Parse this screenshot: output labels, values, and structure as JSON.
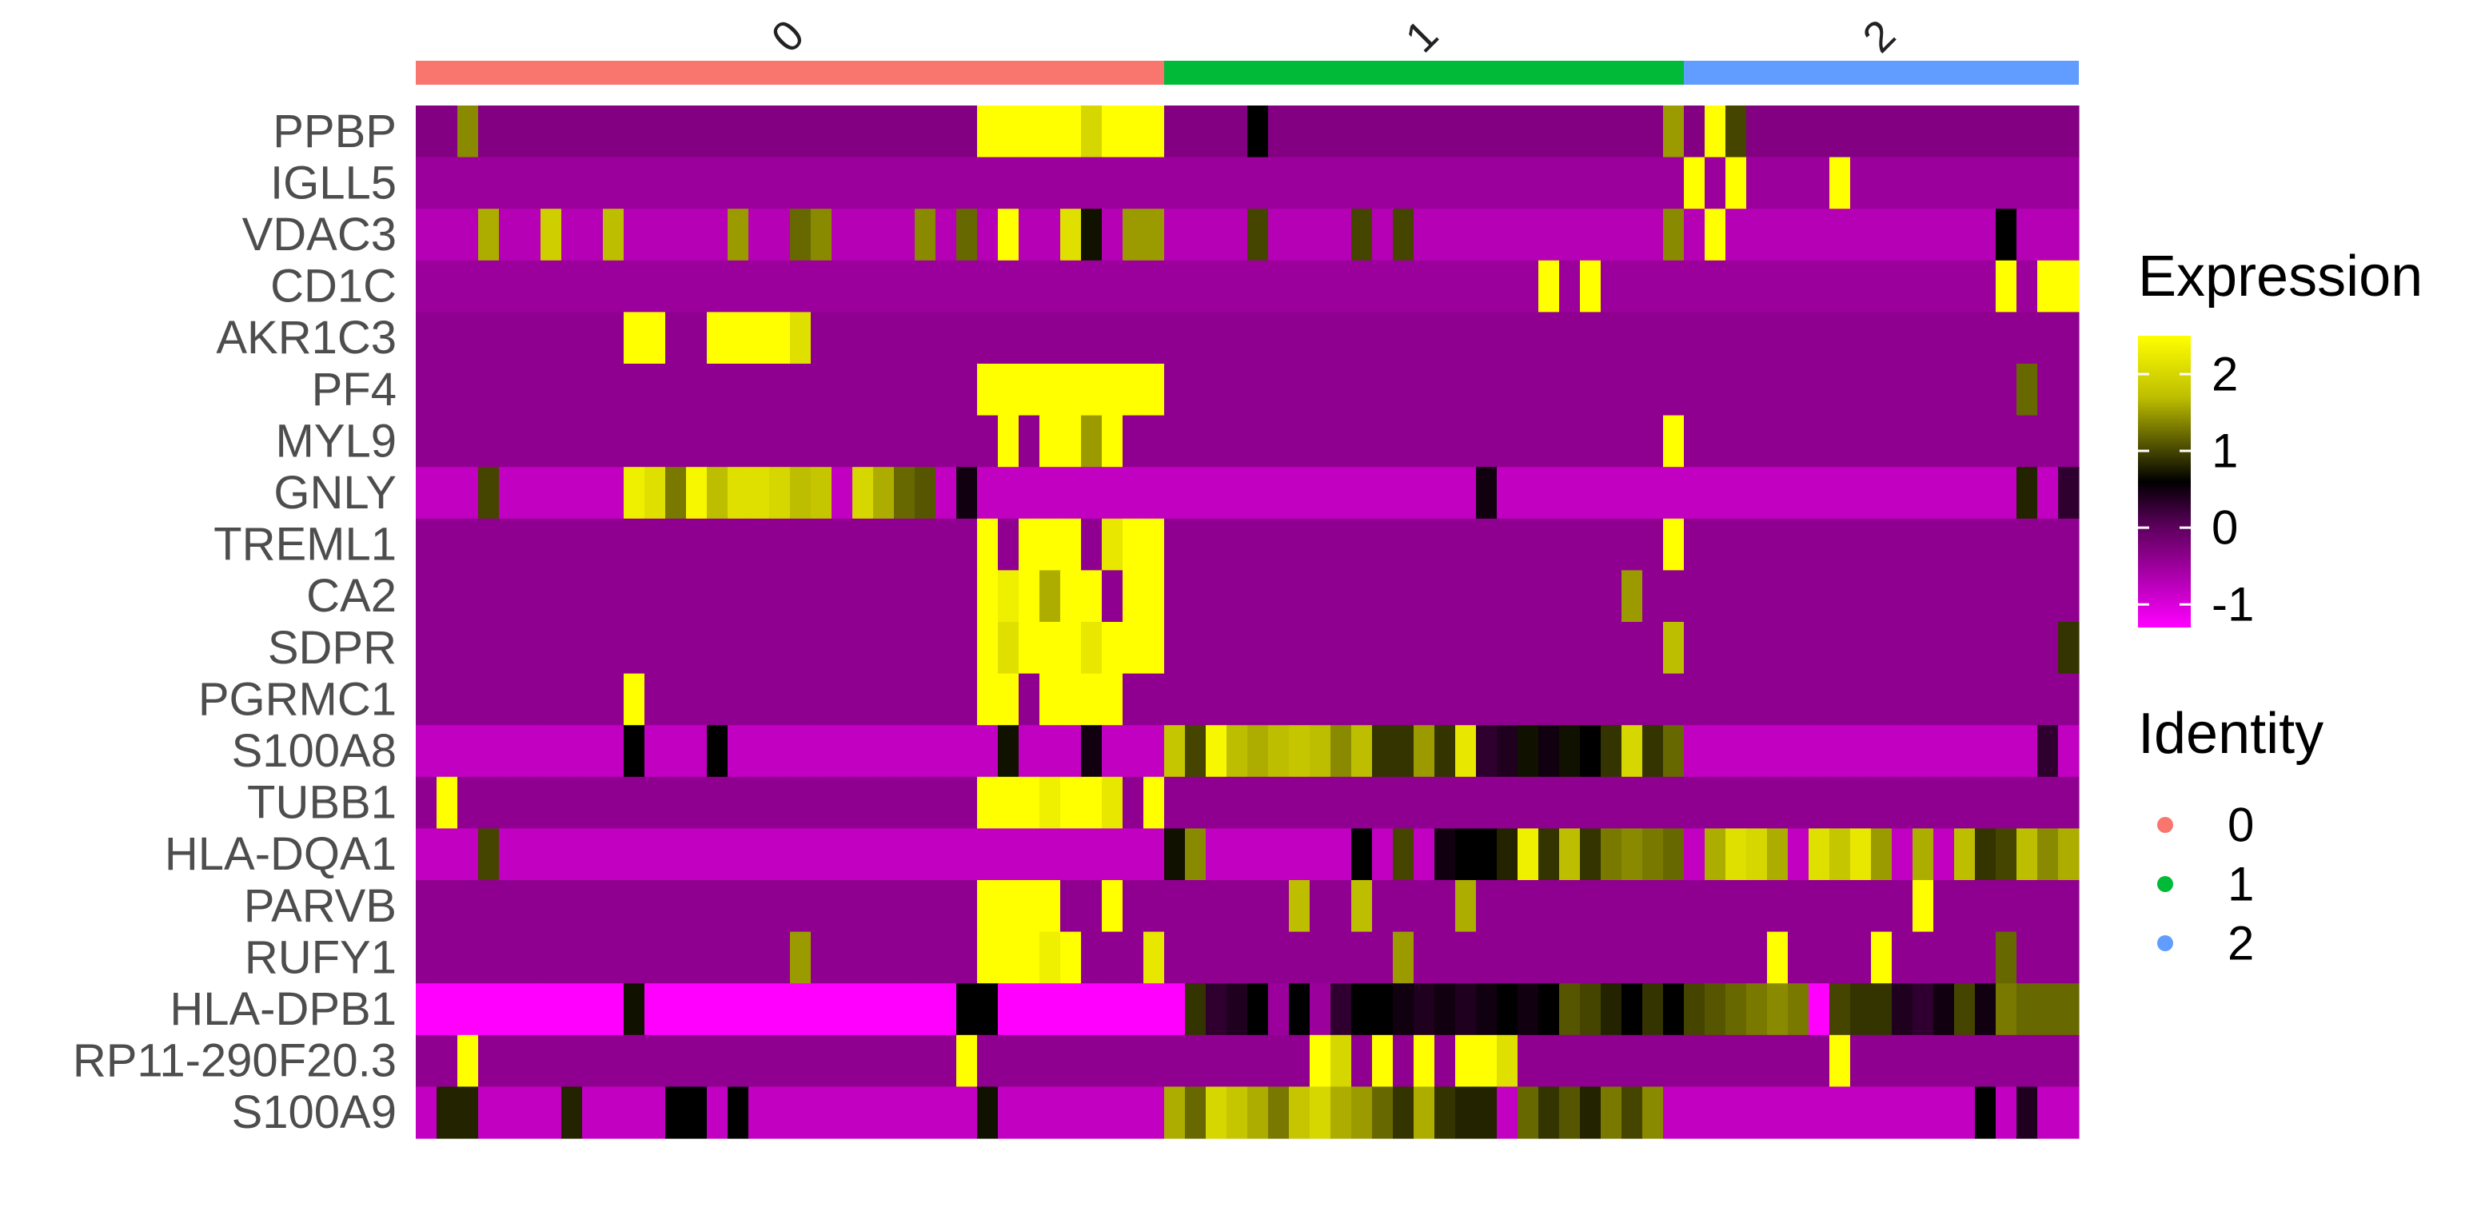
{
  "chart_data": {
    "type": "heatmap",
    "title": "",
    "xlabel": "",
    "ylabel": "",
    "genes": [
      "PPBP",
      "IGLL5",
      "VDAC3",
      "CD1C",
      "AKR1C3",
      "PF4",
      "MYL9",
      "GNLY",
      "TREML1",
      "CA2",
      "SDPR",
      "PGRMC1",
      "S100A8",
      "TUBB1",
      "HLA-DQA1",
      "PARVB",
      "RUFY1",
      "HLA-DPB1",
      "RP11-290F20.3",
      "S100A9"
    ],
    "clusters": [
      {
        "name": "0",
        "cells": 36,
        "color": "#F8766D"
      },
      {
        "name": "1",
        "cells": 25,
        "color": "#00BA38"
      },
      {
        "name": "2",
        "cells": 19,
        "color": "#619CFF"
      }
    ],
    "cell_count": 80,
    "color_scale": {
      "title": "Expression",
      "range": [
        -1.3,
        2.5
      ],
      "stops": [
        {
          "value": -1.3,
          "color": "#FF00FF"
        },
        {
          "value": 0,
          "color": "#5E005E"
        },
        {
          "value": 0.6,
          "color": "#000000"
        },
        {
          "value": 1.7,
          "color": "#BEBE00"
        },
        {
          "value": 2.5,
          "color": "#FFFF00"
        }
      ],
      "ticks": [
        -1,
        0,
        1,
        2
      ]
    },
    "identity_legend": {
      "title": "Identity",
      "entries": [
        {
          "label": "0",
          "color": "#F8766D"
        },
        {
          "label": "1",
          "color": "#00BA38"
        },
        {
          "label": "2",
          "color": "#619CFF"
        }
      ]
    },
    "rows": {
      "PPBP": {
        "base": -0.3,
        "v": {
          "2": 1.4,
          "27": 2.5,
          "28": 2.5,
          "29": 2.5,
          "30": 2.5,
          "31": 2.5,
          "32": 2.0,
          "33": 2.5,
          "34": 2.5,
          "35": 2.5,
          "40": 0.6,
          "60": 1.5,
          "62": 2.5,
          "63": 1.0
        }
      },
      "IGLL5": {
        "base": -0.5,
        "v": {
          "61": 2.5,
          "63": 2.5,
          "68": 2.5
        }
      },
      "VDAC3": {
        "base": -0.7,
        "v": {
          "3": 1.6,
          "6": 1.9,
          "9": 1.7,
          "15": 1.5,
          "18": 1.2,
          "19": 1.4,
          "24": 1.4,
          "26": 1.2,
          "28": 2.5,
          "31": 2.1,
          "32": 0.7,
          "34": 1.5,
          "35": 1.5,
          "40": 1.0,
          "45": 1.0,
          "47": 1.0,
          "60": 1.4,
          "62": 2.5,
          "76": 0.6
        }
      },
      "CD1C": {
        "base": -0.5,
        "v": {
          "54": 2.5,
          "56": 2.5,
          "76": 2.5,
          "78": 2.5,
          "79": 2.5
        }
      },
      "AKR1C3": {
        "base": -0.4,
        "v": {
          "10": 2.5,
          "11": 2.5,
          "14": 2.5,
          "15": 2.5,
          "16": 2.5,
          "17": 2.5,
          "18": 2.1
        }
      },
      "PF4": {
        "base": -0.4,
        "v": {
          "27": 2.5,
          "28": 2.5,
          "29": 2.5,
          "30": 2.5,
          "31": 2.5,
          "32": 2.5,
          "33": 2.5,
          "34": 2.5,
          "35": 2.5,
          "77": 1.2
        }
      },
      "MYL9": {
        "base": -0.4,
        "v": {
          "28": 2.5,
          "30": 2.5,
          "31": 2.5,
          "32": 1.5,
          "33": 2.5,
          "60": 2.5
        }
      },
      "GNLY": {
        "base": -0.8,
        "v": {
          "3": 1.0,
          "10": 2.3,
          "11": 2.1,
          "12": 1.3,
          "13": 2.4,
          "14": 1.7,
          "15": 2.1,
          "16": 2.1,
          "17": 2.0,
          "18": 1.7,
          "19": 1.8,
          "21": 2.0,
          "22": 1.6,
          "23": 1.2,
          "24": 1.1,
          "26": 0.5,
          "51": 0.5,
          "77": 0.8,
          "79": 0.3
        }
      },
      "TREML1": {
        "base": -0.4,
        "v": {
          "27": 2.5,
          "29": 2.5,
          "30": 2.5,
          "31": 2.5,
          "33": 2.2,
          "34": 2.5,
          "35": 2.5,
          "60": 2.5
        }
      },
      "CA2": {
        "base": -0.4,
        "v": {
          "27": 2.5,
          "28": 2.3,
          "29": 2.5,
          "30": 1.6,
          "31": 2.5,
          "32": 2.5,
          "34": 2.5,
          "35": 2.5,
          "58": 1.5
        }
      },
      "SDPR": {
        "base": -0.4,
        "v": {
          "27": 2.5,
          "28": 2.1,
          "29": 2.5,
          "30": 2.5,
          "31": 2.5,
          "32": 2.2,
          "33": 2.5,
          "34": 2.5,
          "35": 2.5,
          "60": 1.7,
          "79": 0.9
        }
      },
      "PGRMC1": {
        "base": -0.4,
        "v": {
          "10": 2.5,
          "27": 2.5,
          "28": 2.5,
          "30": 2.5,
          "31": 2.5,
          "32": 2.5,
          "33": 2.5
        }
      },
      "S100A8": {
        "base": -0.8,
        "v": {
          "10": 0.6,
          "14": 0.6,
          "28": 0.7,
          "32": 0.5,
          "36": 1.8,
          "37": 1.0,
          "38": 2.4,
          "39": 1.7,
          "40": 1.6,
          "41": 1.7,
          "42": 1.8,
          "43": 1.7,
          "44": 1.4,
          "45": 1.7,
          "46": 0.9,
          "47": 0.9,
          "48": 1.5,
          "49": 0.9,
          "50": 2.2,
          "51": 0.3,
          "52": 0.4,
          "53": 0.7,
          "54": 0.5,
          "55": 0.7,
          "56": 0.6,
          "57": 0.9,
          "58": 2.0,
          "59": 0.9,
          "60": 1.2,
          "78": 0.3
        }
      },
      "TUBB1": {
        "base": -0.4,
        "v": {
          "1": 2.5,
          "27": 2.5,
          "28": 2.5,
          "29": 2.5,
          "30": 2.3,
          "31": 2.5,
          "32": 2.5,
          "33": 2.2,
          "35": 2.5
        }
      },
      "HLA-DQA1": {
        "base": -0.8,
        "v": {
          "3": 1.0,
          "36": 0.7,
          "37": 1.4,
          "45": 0.6,
          "47": 1.0,
          "49": 0.5,
          "50": 0.6,
          "51": 0.6,
          "52": 0.8,
          "53": 2.3,
          "54": 0.9,
          "55": 1.7,
          "56": 0.9,
          "57": 1.3,
          "58": 1.4,
          "59": 1.3,
          "60": 1.2,
          "62": 1.6,
          "63": 2.1,
          "64": 2.0,
          "65": 1.6,
          "67": 2.1,
          "68": 1.8,
          "69": 2.2,
          "70": 1.5,
          "72": 1.6,
          "74": 1.7,
          "75": 0.9,
          "76": 1.0,
          "77": 1.7,
          "78": 1.4,
          "79": 1.6
        }
      },
      "PARVB": {
        "base": -0.4,
        "v": {
          "27": 2.5,
          "28": 2.5,
          "29": 2.5,
          "30": 2.5,
          "33": 2.5,
          "42": 1.7,
          "45": 1.7,
          "50": 1.6,
          "72": 2.5
        }
      },
      "RUFY1": {
        "base": -0.4,
        "v": {
          "18": 1.5,
          "27": 2.5,
          "28": 2.5,
          "29": 2.5,
          "30": 2.3,
          "31": 2.5,
          "35": 2.2,
          "47": 1.5,
          "65": 2.5,
          "70": 2.5,
          "76": 1.2
        }
      },
      "HLA-DPB1": {
        "base": -1.3,
        "v": {
          "10": 0.7,
          "26": 0.6,
          "27": 0.6,
          "37": 0.9,
          "38": 0.3,
          "39": 0.4,
          "40": 0.6,
          "41": -0.5,
          "42": 0.6,
          "43": -0.5,
          "44": 0.3,
          "45": 0.6,
          "46": 0.6,
          "47": 0.5,
          "48": 0.4,
          "49": 0.5,
          "50": 0.4,
          "51": 0.5,
          "52": 0.6,
          "53": 0.5,
          "54": 0.6,
          "55": 1.1,
          "56": 1.0,
          "57": 0.8,
          "58": 0.6,
          "59": 0.9,
          "60": 0.6,
          "61": 1.0,
          "62": 1.1,
          "63": 1.2,
          "64": 1.3,
          "65": 1.4,
          "66": 1.3,
          "67": -1.3,
          "68": 1.0,
          "69": 0.9,
          "70": 0.9,
          "71": 0.4,
          "72": 0.3,
          "73": 0.5,
          "74": 1.0,
          "75": 0.5,
          "76": 1.3,
          "77": 1.2,
          "78": 1.2,
          "79": 1.2
        }
      },
      "RP11-290F20.3": {
        "base": -0.4,
        "v": {
          "2": 2.5,
          "26": 2.5,
          "43": 2.5,
          "44": 2.0,
          "46": 2.5,
          "48": 2.5,
          "50": 2.5,
          "51": 2.5,
          "52": 2.1,
          "68": 2.5
        }
      },
      "S100A9": {
        "base": -0.8,
        "v": {
          "1": 0.8,
          "2": 0.8,
          "7": 0.8,
          "12": 0.6,
          "13": 0.6,
          "15": 0.6,
          "27": 0.7,
          "36": 1.6,
          "37": 1.2,
          "38": 2.0,
          "39": 1.8,
          "40": 1.6,
          "41": 1.3,
          "42": 1.8,
          "43": 2.0,
          "44": 1.6,
          "45": 1.5,
          "46": 1.2,
          "47": 0.9,
          "48": 1.6,
          "49": 0.9,
          "50": 0.8,
          "51": 0.8,
          "53": 1.2,
          "54": 0.9,
          "55": 1.1,
          "56": 0.8,
          "57": 1.3,
          "58": 1.0,
          "59": 1.4,
          "75": 0.6,
          "77": 0.4
        }
      }
    }
  }
}
